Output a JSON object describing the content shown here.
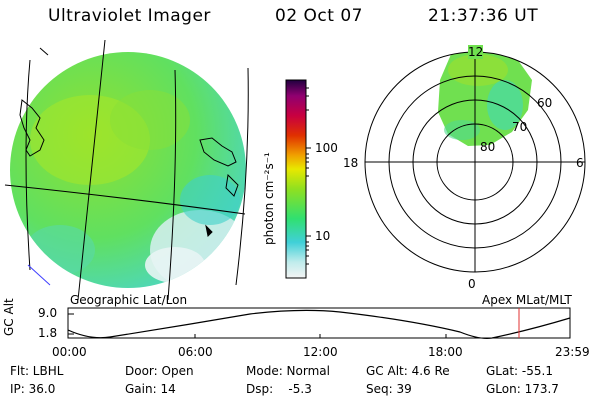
{
  "header": {
    "title": "Ultraviolet Imager",
    "date": "02 Oct 07",
    "time": "21:37:36 UT"
  },
  "panels": {
    "geographic_label": "Geographic Lat/Lon",
    "apex_label": "Apex MLat/MLT"
  },
  "colorbar": {
    "unit_label": "photon cm⁻²s⁻¹",
    "ticks": [
      "100",
      "10"
    ],
    "colors": [
      "#f0f0f0",
      "#b8e8e8",
      "#40d0d8",
      "#30e070",
      "#90e020",
      "#e0e000",
      "#f0a000",
      "#e03000",
      "#c00060",
      "#300050"
    ]
  },
  "polar": {
    "mlt_labels": [
      "12",
      "18",
      "6",
      "0"
    ],
    "lat_labels": [
      "60",
      "70",
      "80"
    ]
  },
  "altitude_plot": {
    "ylabel": "GC Alt",
    "yticks": [
      "9.0",
      "1.8"
    ],
    "xticks": [
      "00:00",
      "06:00",
      "12:00",
      "18:00",
      "23:59"
    ],
    "marker_color": "#e03030"
  },
  "info": {
    "flt": "Flt: LBHL",
    "ip": "IP: 36.0",
    "door": "Door: Open",
    "gain": "Gain: 14",
    "mode": "Mode: Normal",
    "dsp": "Dsp:    -5.3",
    "gcalt": "GC Alt: 4.6 Re",
    "seq": "Seq: 39",
    "glat": "GLat: -55.1",
    "glon": "GLon: 173.7"
  }
}
